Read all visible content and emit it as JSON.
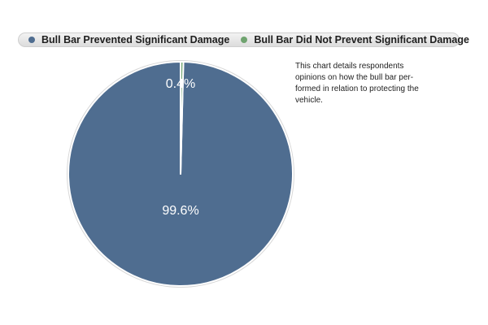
{
  "chart_data": {
    "type": "pie",
    "title": "",
    "categories": [
      "Bull Bar Prevented Significant Damage",
      "Bull Bar Did Not Prevent Significant Damage"
    ],
    "values": [
      99.6,
      0.4
    ],
    "data_labels": [
      "99.6%",
      "0.4%"
    ],
    "colors": [
      "#4f6d90",
      "#6fa36f"
    ],
    "legend_placement": "top",
    "annotation": "This chart details respondents opinions on how the bull bar performed in relation to protecting the vehicle."
  },
  "legend": {
    "item1": "Bull Bar Prevented Significant Damage",
    "item2": "Bull Bar Did Not Prevent Significant Damage"
  },
  "note": "This chart details respondents opinions on how the bull bar per-formed in relation to protecting the vehicle."
}
